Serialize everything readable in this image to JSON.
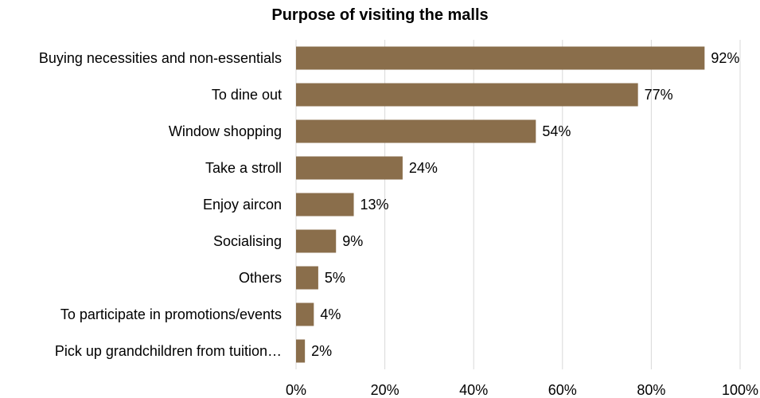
{
  "chart_data": {
    "type": "bar",
    "orientation": "horizontal",
    "title": "Purpose of visiting the malls",
    "xlabel": "",
    "ylabel": "",
    "categories": [
      "Buying necessities and non-essentials",
      "To dine out",
      "Window shopping",
      "Take a stroll",
      "Enjoy aircon",
      "Socialising",
      "Others",
      "To participate in promotions/events",
      "Pick up grandchildren from tuition…"
    ],
    "values": [
      92,
      77,
      54,
      24,
      13,
      9,
      5,
      4,
      2
    ],
    "data_labels": [
      "92%",
      "77%",
      "54%",
      "24%",
      "13%",
      "9%",
      "5%",
      "4%",
      "2%"
    ],
    "xlim": [
      0,
      100
    ],
    "x_ticks": [
      0,
      20,
      40,
      60,
      80,
      100
    ],
    "x_tick_labels": [
      "0%",
      "20%",
      "40%",
      "60%",
      "80%",
      "100%"
    ],
    "grid": "vertical",
    "legend": "none",
    "colors": {
      "bar": "#8a6e4b",
      "grid": "#d9d9d9",
      "text": "#000000"
    }
  }
}
